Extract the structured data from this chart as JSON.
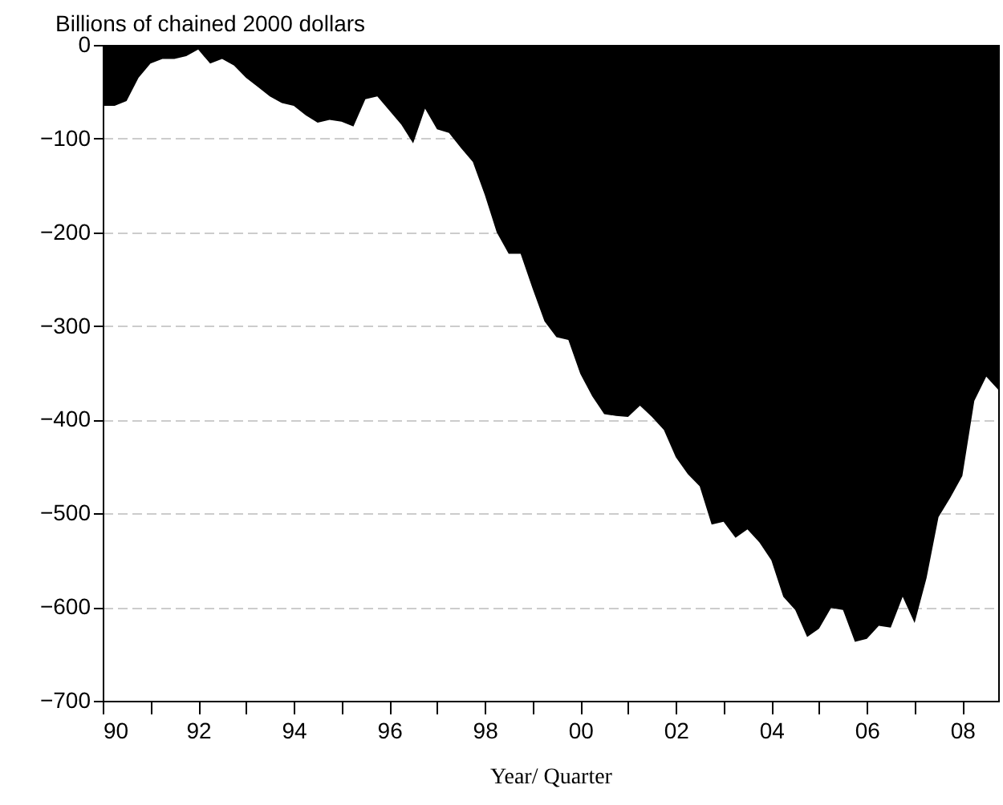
{
  "chart_data": {
    "type": "area",
    "ylabel": "Billions of chained 2000 dollars",
    "xlabel": "Year/ Quarter",
    "x": [
      1990,
      1990.25,
      1990.5,
      1990.75,
      1991,
      1991.25,
      1991.5,
      1991.75,
      1992,
      1992.25,
      1992.5,
      1992.75,
      1993,
      1993.25,
      1993.5,
      1993.75,
      1994,
      1994.25,
      1994.5,
      1994.75,
      1995,
      1995.25,
      1995.5,
      1995.75,
      1996,
      1996.25,
      1996.5,
      1996.75,
      1997,
      1997.25,
      1997.5,
      1997.75,
      1998,
      1998.25,
      1998.5,
      1998.75,
      1999,
      1999.25,
      1999.5,
      1999.75,
      2000,
      2000.25,
      2000.5,
      2000.75,
      2001,
      2001.25,
      2001.5,
      2001.75,
      2002,
      2002.25,
      2002.5,
      2002.75,
      2003,
      2003.25,
      2003.5,
      2003.75,
      2004,
      2004.25,
      2004.5,
      2004.75,
      2005,
      2005.25,
      2005.5,
      2005.75,
      2006,
      2006.25,
      2006.5,
      2006.75,
      2007,
      2007.25,
      2007.5,
      2007.75,
      2008,
      2008.25,
      2008.5,
      2008.75
    ],
    "series": [
      {
        "color": "#000000",
        "values": [
          -65,
          -65,
          -60,
          -35,
          -20,
          -15,
          -15,
          -12,
          -5,
          -20,
          -15,
          -22,
          -35,
          -45,
          -55,
          -62,
          -65,
          -75,
          -83,
          -80,
          -82,
          -87,
          -58,
          -55,
          -70,
          -85,
          -105,
          -68,
          -90,
          -94,
          -110,
          -125,
          -160,
          -200,
          -223,
          -223,
          -260,
          -295,
          -312,
          -315,
          -351,
          -375,
          -394,
          -396,
          -397,
          -385,
          -397,
          -411,
          -440,
          -458,
          -471,
          -512,
          -509,
          -526,
          -517,
          -531,
          -550,
          -589,
          -603,
          -632,
          -623,
          -601,
          -603,
          -637,
          -634,
          -620,
          -622,
          -589,
          -617,
          -569,
          -504,
          -483,
          -460,
          -380,
          -354,
          -368
        ]
      }
    ],
    "xlim": [
      1990,
      2008.75
    ],
    "xticks": [
      {
        "value": 1990,
        "label": "90"
      },
      {
        "value": 1991,
        "label": null
      },
      {
        "value": 1992,
        "label": "92"
      },
      {
        "value": 1993,
        "label": null
      },
      {
        "value": 1994,
        "label": "94"
      },
      {
        "value": 1995,
        "label": null
      },
      {
        "value": 1996,
        "label": "96"
      },
      {
        "value": 1997,
        "label": null
      },
      {
        "value": 1998,
        "label": "98"
      },
      {
        "value": 1999,
        "label": null
      },
      {
        "value": 2000,
        "label": "00"
      },
      {
        "value": 2001,
        "label": null
      },
      {
        "value": 2002,
        "label": "02"
      },
      {
        "value": 2003,
        "label": null
      },
      {
        "value": 2004,
        "label": "04"
      },
      {
        "value": 2005,
        "label": null
      },
      {
        "value": 2006,
        "label": "06"
      },
      {
        "value": 2007,
        "label": null
      },
      {
        "value": 2008,
        "label": "08"
      }
    ],
    "ylim": [
      -700,
      0
    ],
    "yticks": [
      -700,
      -600,
      -500,
      -400,
      -300,
      -200,
      -100,
      0
    ],
    "grid": "y"
  }
}
